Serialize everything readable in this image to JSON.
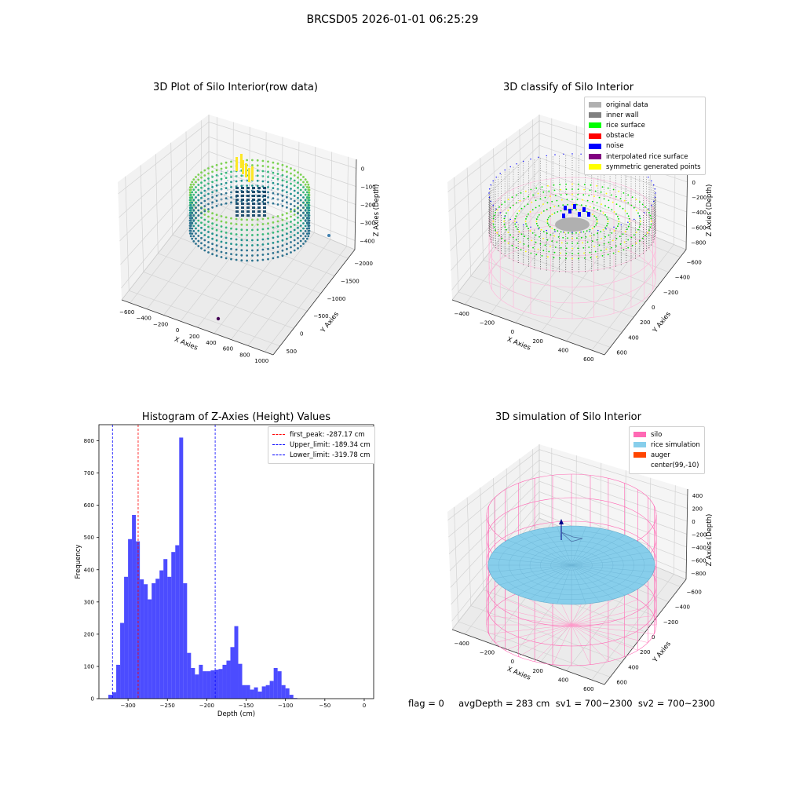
{
  "figure": {
    "suptitle": "BRCSD05 2026-01-01 06:25:29"
  },
  "panels": {
    "raw": {
      "title": "3D Plot of Silo Interior(row data)",
      "xlabel": "X Axies",
      "ylabel": "Y Axies",
      "zlabel": "Z Axies (Depth)",
      "xticks": [
        "−600",
        "−400",
        "−200",
        "0",
        "200",
        "400",
        "600",
        "800",
        "1000"
      ],
      "yticks": [
        "500",
        "0",
        "−500",
        "−1000",
        "−1500",
        "−2000"
      ],
      "zticks": [
        "0",
        "−100",
        "−200",
        "−300",
        "−400"
      ]
    },
    "classify": {
      "title": "3D classify of Silo Interior",
      "xlabel": "X Axies",
      "ylabel": "Y Axies",
      "zlabel": "Z Axies (Depth)",
      "xticks": [
        "−400",
        "−200",
        "0",
        "200",
        "400",
        "600"
      ],
      "yticks": [
        "600",
        "400",
        "200",
        "0",
        "−200",
        "−400",
        "−600"
      ],
      "zticks": [
        "200",
        "0",
        "−200",
        "−400",
        "−600",
        "−800"
      ],
      "legend": [
        {
          "label": "original data",
          "color": "#b0b0b0"
        },
        {
          "label": "inner wall",
          "color": "#808080"
        },
        {
          "label": "rice surface",
          "color": "#00ff00"
        },
        {
          "label": "obstacle",
          "color": "#ff0000"
        },
        {
          "label": "noise",
          "color": "#0000ff"
        },
        {
          "label": "interpolated rice surface",
          "color": "#800080"
        },
        {
          "label": "symmetric generated points",
          "color": "#ffff00"
        }
      ]
    },
    "simulation": {
      "title": "3D simulation of Silo Interior",
      "xlabel": "X Axies",
      "ylabel": "Y Axies",
      "zlabel": "Z Axies (Depth)",
      "xticks": [
        "−400",
        "−200",
        "0",
        "200",
        "400",
        "600"
      ],
      "yticks": [
        "600",
        "400",
        "200",
        "0",
        "−200",
        "−400",
        "−600"
      ],
      "zticks": [
        "400",
        "200",
        "0",
        "−200",
        "−400",
        "−600",
        "−800"
      ],
      "legend": [
        {
          "label": "silo",
          "color": "#ff69b4"
        },
        {
          "label": "rice simulation",
          "color": "#87ceeb"
        },
        {
          "label": "auger",
          "color": "#ff4500"
        },
        {
          "label": "center(99,-10)",
          "color": ""
        }
      ]
    },
    "footer": {
      "text": "flag = 0     avgDepth = 283 cm  sv1 = 700~2300  sv2 = 700~2300"
    }
  },
  "chart_data": [
    {
      "type": "bar",
      "title": "Histogram of Z-Axies (Height) Values",
      "xlabel": "Depth (cm)",
      "ylabel": "Frequency",
      "xlim": [
        -337,
        12
      ],
      "ylim": [
        0,
        850
      ],
      "xticks": [
        -300,
        -250,
        -200,
        -150,
        -100,
        -50,
        0
      ],
      "yticks": [
        0,
        100,
        200,
        300,
        400,
        500,
        600,
        700,
        800
      ],
      "bin_edges": [
        -325,
        -320,
        -315,
        -310,
        -305,
        -300,
        -295,
        -290,
        -285,
        -280,
        -275,
        -270,
        -265,
        -260,
        -255,
        -250,
        -245,
        -240,
        -235,
        -230,
        -225,
        -220,
        -215,
        -210,
        -205,
        -200,
        -195,
        -190,
        -185,
        -180,
        -175,
        -170,
        -165,
        -160,
        -155,
        -150,
        -145,
        -140,
        -135,
        -130,
        -125,
        -120,
        -115,
        -110,
        -105,
        -100,
        -95,
        -90,
        -85,
        -80,
        -75,
        -70,
        -65,
        -60,
        -55,
        -50,
        -45,
        -40,
        -35,
        -30,
        -25,
        -20,
        -15,
        -10,
        -5,
        0
      ],
      "values": [
        12,
        20,
        105,
        235,
        378,
        495,
        570,
        488,
        370,
        355,
        308,
        358,
        372,
        398,
        433,
        378,
        455,
        476,
        810,
        358,
        142,
        95,
        75,
        105,
        85,
        85,
        88,
        90,
        92,
        105,
        118,
        160,
        225,
        108,
        42,
        42,
        28,
        35,
        22,
        38,
        42,
        55,
        95,
        85,
        42,
        32,
        12,
        2,
        0,
        0,
        0,
        0,
        0,
        0,
        0,
        0,
        0,
        0,
        0,
        0,
        0,
        0,
        0,
        0,
        0
      ],
      "series": [
        {
          "name": "",
          "color": "#0000ff",
          "alpha": 0.7
        }
      ],
      "vlines": [
        {
          "label": "first_peak: -287.17 cm",
          "x": -287.17,
          "color": "#ff0000"
        },
        {
          "label": "Upper_limit: -189.34 cm",
          "x": -189.34,
          "color": "#0000ff"
        },
        {
          "label": "Lower_limit: -319.78 cm",
          "x": -319.78,
          "color": "#0000ff"
        }
      ],
      "legend": "top-right"
    }
  ]
}
